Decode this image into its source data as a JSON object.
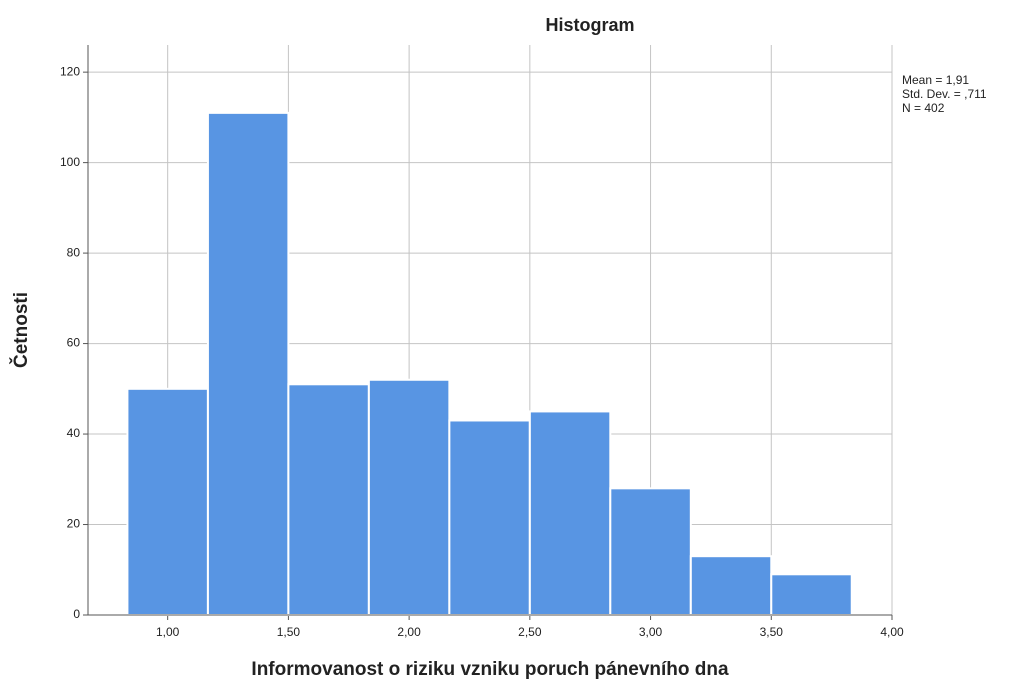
{
  "chart_data": {
    "type": "histogram",
    "title": "Histogram",
    "x_label": "Informovanost o riziku vzniku poruch pánevního dna",
    "y_label": "Četnosti",
    "bins": [
      0.8333,
      1.1667,
      1.5,
      1.8333,
      2.1667,
      2.5,
      2.8333,
      3.1667,
      3.5,
      3.8333
    ],
    "counts": [
      50,
      111,
      51,
      52,
      43,
      45,
      28,
      13,
      9
    ],
    "color": "#5895e3",
    "xlim": [
      0.67,
      4.0
    ],
    "xticks": [
      {
        "value": 1,
        "label": "1,00"
      },
      {
        "value": 1.5,
        "label": "1,50"
      },
      {
        "value": 2,
        "label": "2,00"
      },
      {
        "value": 2.5,
        "label": "2,50"
      },
      {
        "value": 3,
        "label": "3,00"
      },
      {
        "value": 3.5,
        "label": "3,50"
      },
      {
        "value": 4,
        "label": "4,00"
      }
    ],
    "ylim": [
      0,
      126
    ],
    "yticks": [
      0,
      20,
      40,
      60,
      80,
      100,
      120
    ],
    "grid": true,
    "annotations": [
      "Mean = 1,91",
      "Std. Dev. = ,711",
      "N = 402"
    ]
  }
}
